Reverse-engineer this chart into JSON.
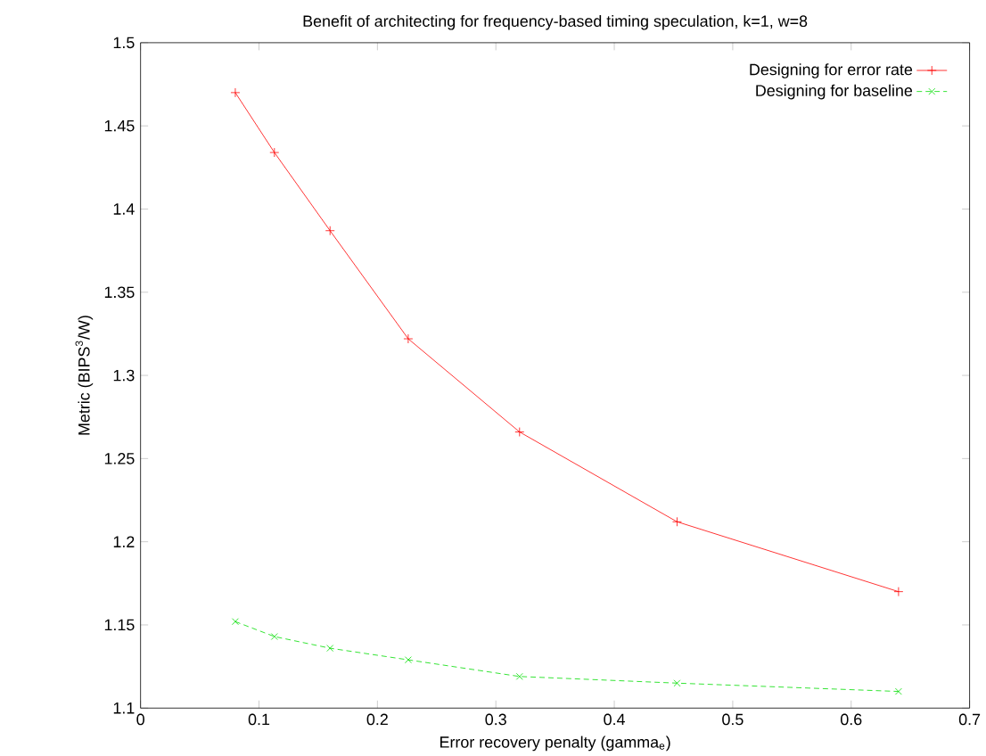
{
  "chart_data": {
    "type": "line",
    "title": "Benefit of architecting for frequency-based timing speculation, k=1, w=8",
    "xlabel": "Error recovery penalty (gamma$_{e}$)",
    "ylabel": "Metric (BIPS$^{3}$/W)",
    "x": [
      0.08,
      0.113,
      0.16,
      0.226,
      0.32,
      0.453,
      0.64
    ],
    "series": [
      {
        "name": "Designing for error rate",
        "color": "#ff0000",
        "marker": "plus",
        "line_style": "solid",
        "values": [
          1.47,
          1.434,
          1.387,
          1.322,
          1.266,
          1.212,
          1.17
        ]
      },
      {
        "name": "Designing for baseline",
        "color": "#00dd00",
        "marker": "cross",
        "line_style": "dashed",
        "values": [
          1.152,
          1.143,
          1.136,
          1.129,
          1.119,
          1.115,
          1.11
        ]
      }
    ],
    "xlim": [
      0,
      0.7
    ],
    "ylim": [
      1.1,
      1.5
    ],
    "xticks": [
      0,
      0.1,
      0.2,
      0.3,
      0.4,
      0.5,
      0.6,
      0.7
    ],
    "yticks": [
      1.1,
      1.15,
      1.2,
      1.25,
      1.3,
      1.35,
      1.4,
      1.45,
      1.5
    ],
    "legend": "top right"
  }
}
